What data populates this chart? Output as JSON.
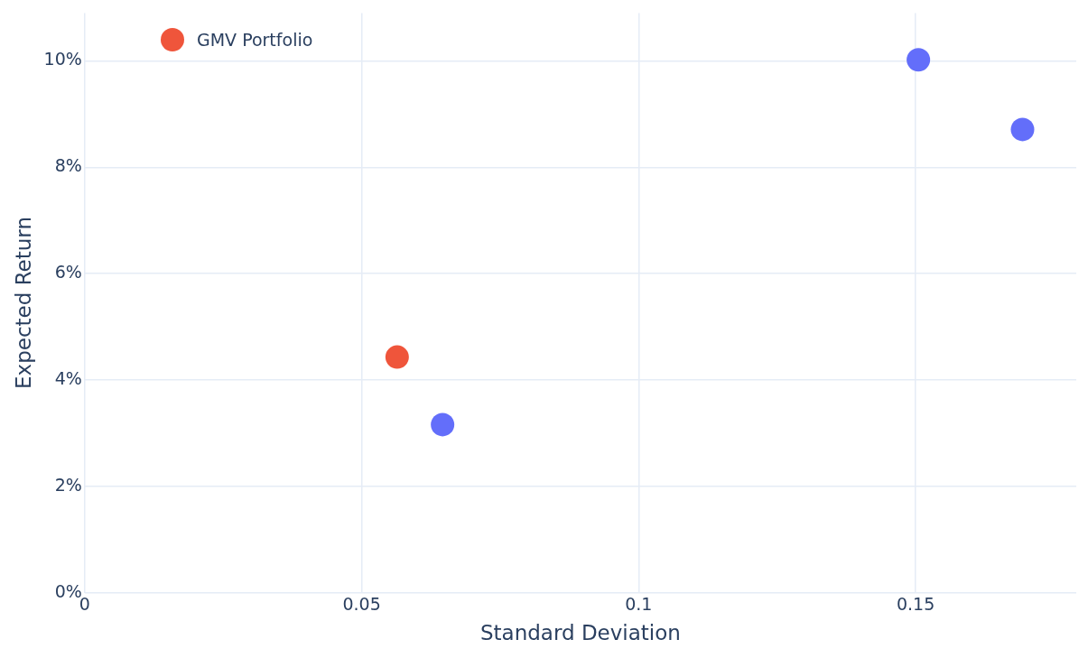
{
  "chart_data": {
    "type": "scatter",
    "xlabel": "Standard Deviation",
    "ylabel": "Expected Return",
    "series": [
      {
        "color": "#636efa",
        "x": [
          0.1505,
          0.1693,
          0.0646
        ],
        "values": [
          10.02,
          8.71,
          3.16
        ]
      },
      {
        "name": "GMV Portfolio",
        "color": "#ef553b",
        "x": [
          0.0564
        ],
        "values": [
          4.43
        ]
      }
    ],
    "xlim": [
      0,
      0.179
    ],
    "xticks": [
      0,
      0.05,
      0.1,
      0.15
    ],
    "ylim": [
      0,
      10.9
    ],
    "yticks": [
      {
        "value": 0,
        "label": "0%"
      },
      {
        "value": 2,
        "label": "2%"
      },
      {
        "value": 4,
        "label": "4%"
      },
      {
        "value": 6,
        "label": "6%"
      },
      {
        "value": 8,
        "label": "8%"
      },
      {
        "value": 10,
        "label": "10%"
      }
    ],
    "grid": true,
    "legend": "top left",
    "marker": "circle"
  }
}
